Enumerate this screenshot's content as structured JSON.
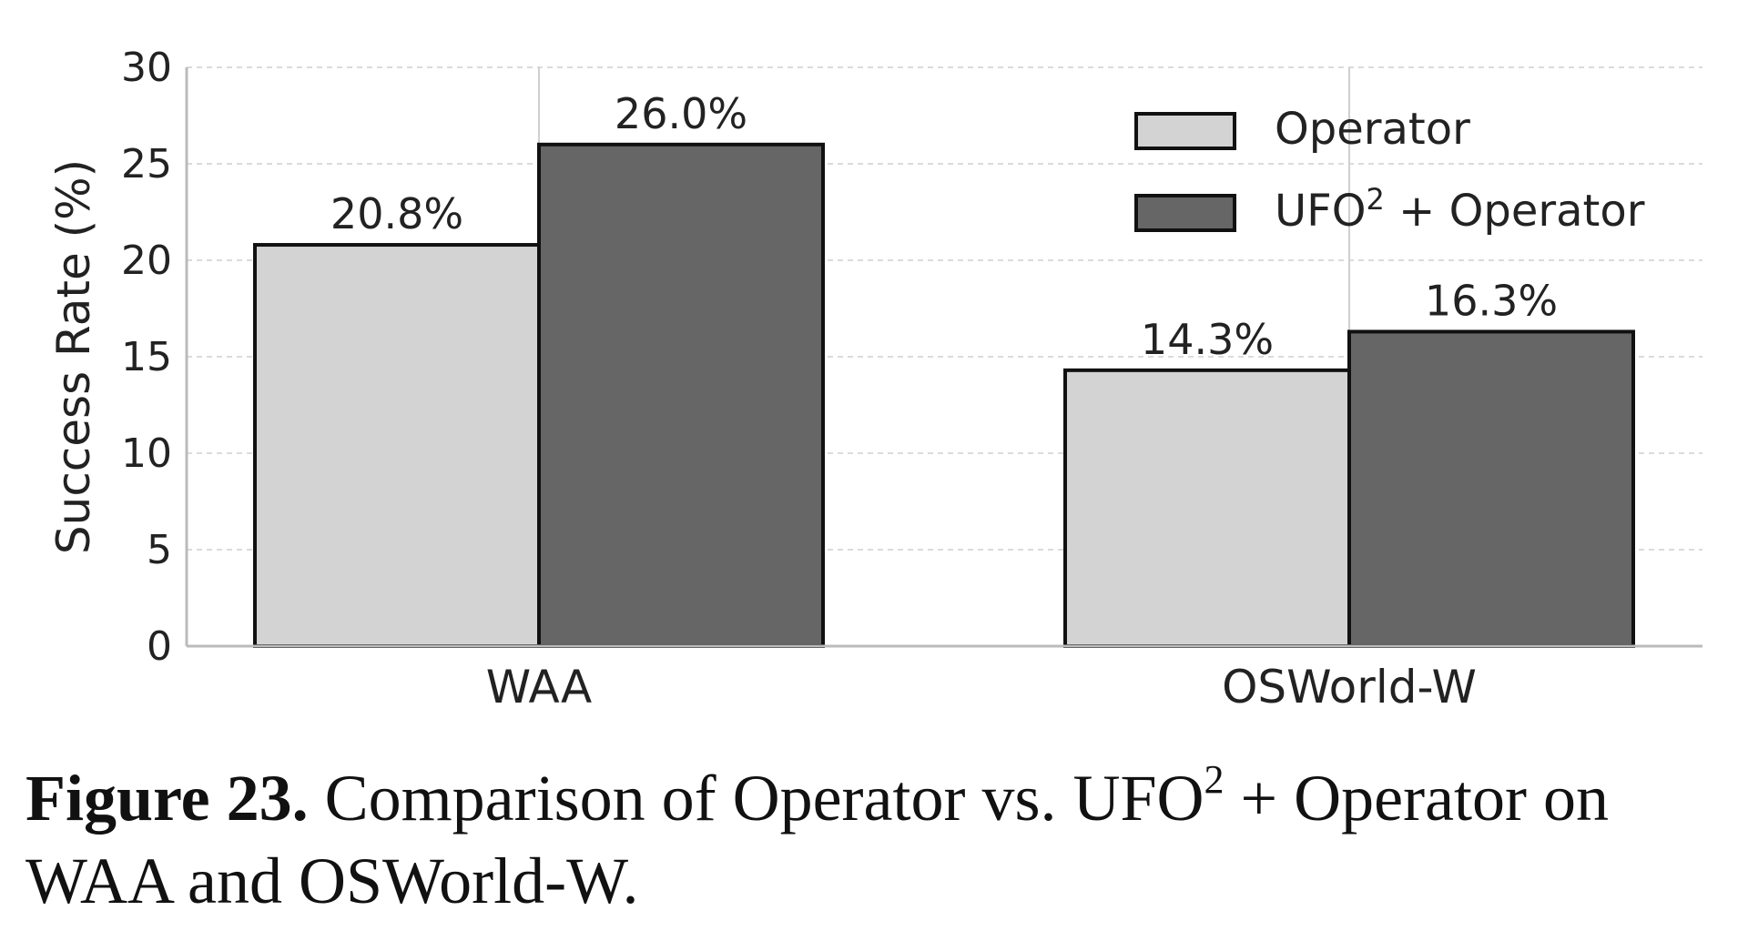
{
  "chart_data": {
    "type": "bar",
    "categories": [
      "WAA",
      "OSWorld-W"
    ],
    "series": [
      {
        "name": "Operator",
        "values": [
          20.8,
          14.3
        ],
        "labels": [
          "20.8%",
          "14.3%"
        ],
        "color": "#d3d3d3"
      },
      {
        "name": "UFO² + Operator",
        "name_parts": [
          "UFO",
          "2",
          " + Operator"
        ],
        "values": [
          26.0,
          16.3
        ],
        "labels": [
          "26.0%",
          "16.3%"
        ],
        "color": "#666666"
      }
    ],
    "ylabel": "Success Rate (%)",
    "ylim": [
      0,
      30
    ],
    "yticks": [
      0,
      5,
      10,
      15,
      20,
      25,
      30
    ],
    "grid": true,
    "legend_position": "top-right"
  },
  "caption": {
    "label": "Figure 23.",
    "text_before": "Comparison of Operator vs. UFO",
    "superscript": "2",
    "text_after": " + Operator on WAA and OSWorld-W."
  }
}
